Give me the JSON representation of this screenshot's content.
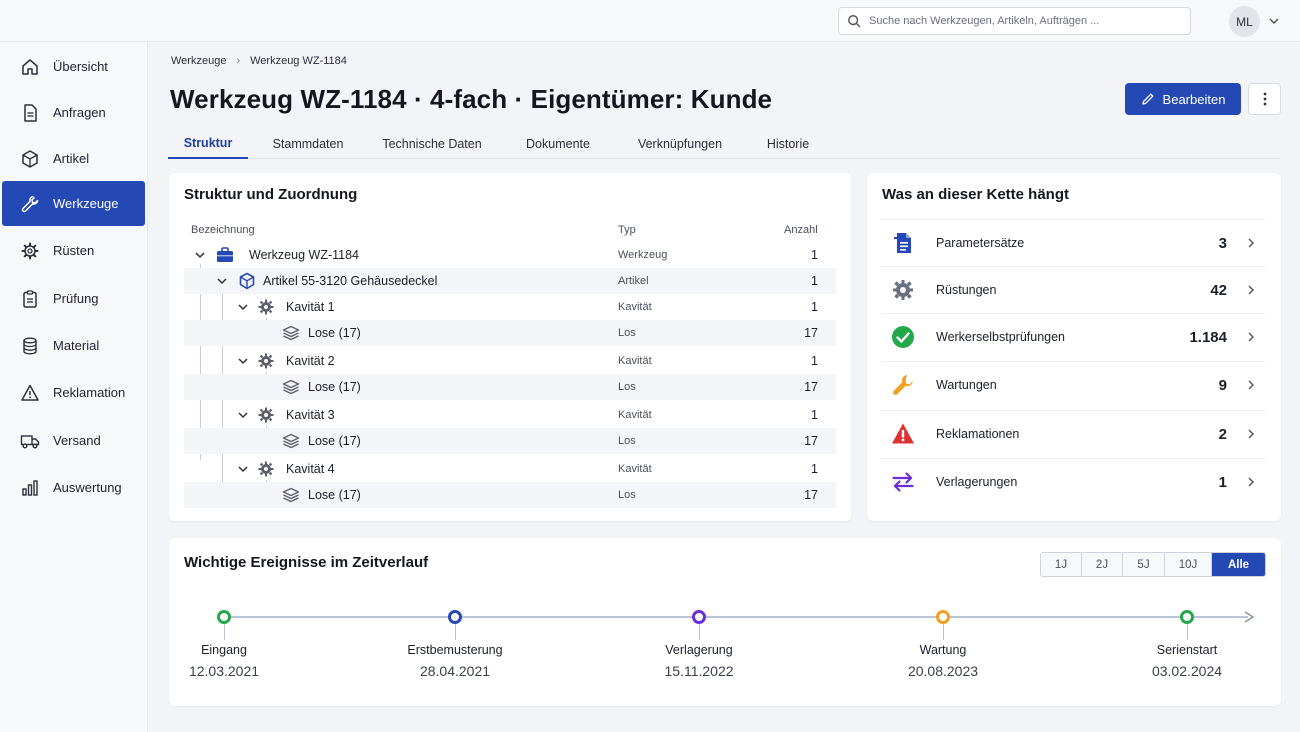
{
  "topbar": {
    "search_placeholder": "Suche nach Werkzeugen, Artikeln, Aufträgen ...",
    "avatar_initials": "ML"
  },
  "sidebar": {
    "items": [
      {
        "label": "Übersicht",
        "icon": "home-icon"
      },
      {
        "label": "Anfragen",
        "icon": "document-icon"
      },
      {
        "label": "Artikel",
        "icon": "box-icon"
      },
      {
        "label": "Werkzeuge",
        "icon": "wrench-icon",
        "active": true
      },
      {
        "label": "Rüsten",
        "icon": "gear-icon"
      },
      {
        "label": "Prüfung",
        "icon": "clipboard-icon"
      },
      {
        "label": "Material",
        "icon": "database-icon"
      },
      {
        "label": "Reklamation",
        "icon": "warning-icon"
      },
      {
        "label": "Versand",
        "icon": "truck-icon"
      },
      {
        "label": "Auswertung",
        "icon": "bar-chart-icon"
      }
    ]
  },
  "breadcrumb": [
    "Werkzeuge",
    "Werkzeug WZ-1184"
  ],
  "page_title": "Werkzeug WZ-1184 · 4-fach  · Eigentümer: Kunde",
  "actions": {
    "edit_label": "Bearbeiten"
  },
  "tabs": [
    {
      "label": "Struktur",
      "active": true
    },
    {
      "label": "Stammdaten"
    },
    {
      "label": "Technische Daten"
    },
    {
      "label": "Dokumente"
    },
    {
      "label": "Verknüpfungen"
    },
    {
      "label": "Historie"
    }
  ],
  "structure": {
    "title": "Struktur und Zuordnung",
    "columns": {
      "name": "Bezeichnung",
      "type": "Typ",
      "count": "Anzahl"
    },
    "rows": [
      {
        "name": "Werkzeug WZ-1184",
        "type": "Werkzeug",
        "count": "1",
        "level": 0,
        "icon": "toolbox-icon"
      },
      {
        "name": "Artikel 55-3120 Gehäusedeckel",
        "type": "Artikel",
        "count": "1",
        "level": 1,
        "icon": "cube-icon"
      },
      {
        "name": "Kavität 1",
        "type": "Kavität",
        "count": "1",
        "level": 2,
        "icon": "gear-icon"
      },
      {
        "name": "Lose (17)",
        "type": "Los",
        "count": "17",
        "level": 3,
        "icon": "layers-icon"
      },
      {
        "name": "Kavität 2",
        "type": "Kavität",
        "count": "1",
        "level": 2,
        "icon": "gear-icon"
      },
      {
        "name": "Lose (17)",
        "type": "Los",
        "count": "17",
        "level": 3,
        "icon": "layers-icon"
      },
      {
        "name": "Kavität 3",
        "type": "Kavität",
        "count": "1",
        "level": 2,
        "icon": "gear-icon"
      },
      {
        "name": "Lose (17)",
        "type": "Los",
        "count": "17",
        "level": 3,
        "icon": "layers-icon"
      },
      {
        "name": "Kavität 4",
        "type": "Kavität",
        "count": "1",
        "level": 2,
        "icon": "gear-icon"
      },
      {
        "name": "Lose (17)",
        "type": "Los",
        "count": "17",
        "level": 3,
        "icon": "layers-icon"
      }
    ]
  },
  "chain": {
    "title": "Was an dieser Kette hängt",
    "items": [
      {
        "label": "Parametersätze",
        "value": "3",
        "icon": "document-list-icon",
        "color": "#2549b4"
      },
      {
        "label": "Rüstungen",
        "value": "42",
        "icon": "gear-icon",
        "color": "#6b7080"
      },
      {
        "label": "Werkerselbstprüfungen",
        "value": "1.184",
        "icon": "check-circle-icon",
        "color": "#23a84a"
      },
      {
        "label": "Wartungen",
        "value": "9",
        "icon": "wrench-icon",
        "color": "#f0a020"
      },
      {
        "label": "Reklamationen",
        "value": "2",
        "icon": "warning-icon",
        "color": "#e03131"
      },
      {
        "label": "Verlagerungen",
        "value": "1",
        "icon": "swap-arrows-icon",
        "color": "#6a2fd6"
      }
    ]
  },
  "timeline": {
    "title": "Wichtige Ereignisse im Zeitverlauf",
    "ranges": [
      {
        "label": "1J"
      },
      {
        "label": "2J"
      },
      {
        "label": "5J"
      },
      {
        "label": "10J"
      },
      {
        "label": "Alle",
        "active": true
      }
    ],
    "events": [
      {
        "label": "Eingang",
        "date": "12.03.2021",
        "color": "#23a84a"
      },
      {
        "label": "Erstbemusterung",
        "date": "28.04.2021",
        "color": "#2549b4"
      },
      {
        "label": "Verlagerung",
        "date": "15.11.2022",
        "color": "#6a2fd6"
      },
      {
        "label": "Wartung",
        "date": "20.08.2023",
        "color": "#f0a020"
      },
      {
        "label": "Serienstart",
        "date": "03.02.2024",
        "color": "#23a84a"
      }
    ]
  }
}
